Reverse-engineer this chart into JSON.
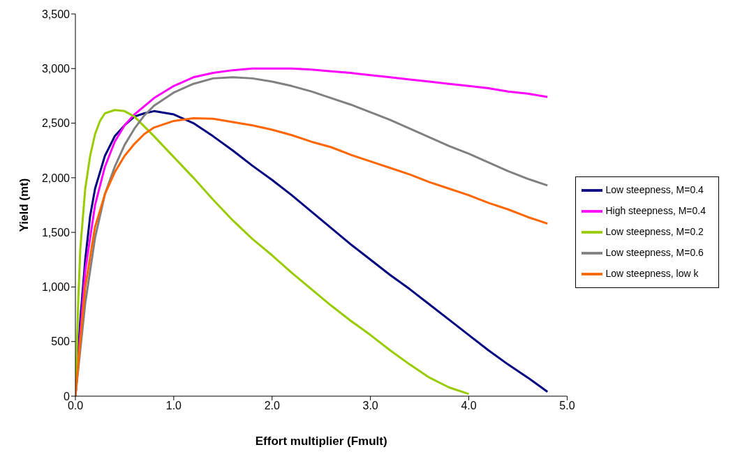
{
  "chart_data": {
    "type": "line",
    "xlabel": "Effort multiplier (Fmult)",
    "ylabel": "Yield (mt)",
    "xlim": [
      0,
      5
    ],
    "xticks": [
      {
        "value": 0,
        "label": "0.0"
      },
      {
        "value": 1,
        "label": "1.0"
      },
      {
        "value": 2,
        "label": "2.0"
      },
      {
        "value": 3,
        "label": "3.0"
      },
      {
        "value": 4,
        "label": "4.0"
      },
      {
        "value": 5,
        "label": "5.0"
      }
    ],
    "ylim": [
      0,
      3500
    ],
    "yticks": [
      {
        "value": 0,
        "label": "0"
      },
      {
        "value": 500,
        "label": "500"
      },
      {
        "value": 1000,
        "label": "1,000"
      },
      {
        "value": 1500,
        "label": "1,500"
      },
      {
        "value": 2000,
        "label": "2,000"
      },
      {
        "value": 2500,
        "label": "2,500"
      },
      {
        "value": 3000,
        "label": "3,000"
      },
      {
        "value": 3500,
        "label": "3,500"
      }
    ],
    "grid": false,
    "legend": "right",
    "marker": "none",
    "line_style": "solid",
    "series": [
      {
        "name": "Low steepness, M=0.4",
        "color": "#000080",
        "x": [
          0,
          0.05,
          0.1,
          0.15,
          0.2,
          0.3,
          0.4,
          0.5,
          0.6,
          0.7,
          0.8,
          1.0,
          1.2,
          1.4,
          1.6,
          1.8,
          2.0,
          2.2,
          2.4,
          2.6,
          2.8,
          3.0,
          3.2,
          3.4,
          3.6,
          3.8,
          4.0,
          4.2,
          4.4,
          4.6,
          4.8
        ],
        "values": [
          0,
          700,
          1250,
          1650,
          1900,
          2200,
          2380,
          2480,
          2560,
          2590,
          2610,
          2580,
          2500,
          2380,
          2250,
          2110,
          1980,
          1840,
          1690,
          1540,
          1390,
          1250,
          1110,
          980,
          840,
          700,
          560,
          420,
          290,
          170,
          40
        ]
      },
      {
        "name": "High steepness, M=0.4",
        "color": "#ff00ff",
        "x": [
          0,
          0.1,
          0.2,
          0.3,
          0.4,
          0.5,
          0.6,
          0.8,
          1.0,
          1.2,
          1.4,
          1.6,
          1.8,
          2.0,
          2.2,
          2.4,
          2.6,
          2.8,
          3.0,
          3.2,
          3.4,
          3.6,
          3.8,
          4.0,
          4.2,
          4.4,
          4.6,
          4.8
        ],
        "values": [
          0,
          1150,
          1750,
          2100,
          2330,
          2480,
          2580,
          2730,
          2840,
          2920,
          2960,
          2985,
          3000,
          3000,
          3000,
          2990,
          2975,
          2960,
          2940,
          2920,
          2900,
          2880,
          2860,
          2840,
          2820,
          2790,
          2770,
          2740
        ]
      },
      {
        "name": "Low steepness, M=0.2",
        "color": "#99cc00",
        "x": [
          0,
          0.03,
          0.05,
          0.1,
          0.15,
          0.2,
          0.25,
          0.3,
          0.4,
          0.5,
          0.6,
          0.8,
          1.0,
          1.2,
          1.4,
          1.6,
          1.8,
          2.0,
          2.2,
          2.4,
          2.6,
          2.8,
          3.0,
          3.2,
          3.4,
          3.6,
          3.8,
          4.0
        ],
        "values": [
          0,
          900,
          1350,
          1900,
          2200,
          2400,
          2520,
          2590,
          2620,
          2610,
          2560,
          2380,
          2190,
          2000,
          1800,
          1610,
          1440,
          1290,
          1130,
          980,
          830,
          690,
          560,
          420,
          290,
          170,
          80,
          20
        ]
      },
      {
        "name": "Low steepness, M=0.6",
        "color": "#808080",
        "x": [
          0,
          0.1,
          0.2,
          0.3,
          0.4,
          0.5,
          0.6,
          0.7,
          0.8,
          1.0,
          1.2,
          1.4,
          1.6,
          1.8,
          2.0,
          2.2,
          2.4,
          2.6,
          2.8,
          3.0,
          3.2,
          3.4,
          3.6,
          3.8,
          4.0,
          4.2,
          4.4,
          4.6,
          4.8
        ],
        "values": [
          0,
          850,
          1450,
          1850,
          2100,
          2300,
          2450,
          2570,
          2660,
          2780,
          2860,
          2910,
          2920,
          2910,
          2880,
          2840,
          2790,
          2730,
          2670,
          2600,
          2530,
          2450,
          2370,
          2290,
          2220,
          2140,
          2060,
          1990,
          1930
        ]
      },
      {
        "name": "Low steepness, low k",
        "color": "#ff6600",
        "x": [
          0,
          0.1,
          0.2,
          0.3,
          0.4,
          0.5,
          0.6,
          0.7,
          0.8,
          1.0,
          1.2,
          1.4,
          1.6,
          1.8,
          2.0,
          2.2,
          2.4,
          2.6,
          2.8,
          3.0,
          3.2,
          3.4,
          3.6,
          3.8,
          4.0,
          4.2,
          4.4,
          4.6,
          4.8
        ],
        "values": [
          0,
          1000,
          1550,
          1850,
          2050,
          2200,
          2310,
          2400,
          2460,
          2520,
          2545,
          2540,
          2510,
          2480,
          2440,
          2390,
          2330,
          2280,
          2210,
          2150,
          2090,
          2030,
          1960,
          1900,
          1840,
          1770,
          1710,
          1640,
          1580
        ]
      }
    ]
  }
}
